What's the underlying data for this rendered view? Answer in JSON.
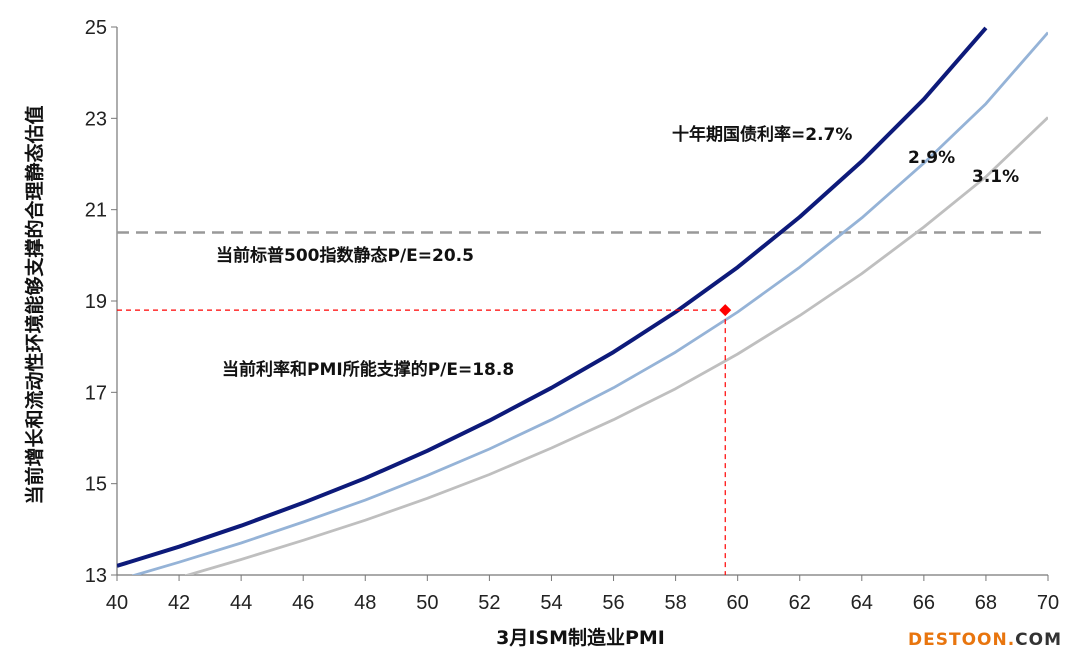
{
  "chart_data": {
    "type": "line",
    "xlabel": "3月ISM制造业PMI",
    "ylabel": "当前增长和流动性环境能够支撑的合理静态估值",
    "xlim": [
      40,
      70
    ],
    "ylim": [
      13,
      25
    ],
    "xticks": [
      40,
      42,
      44,
      46,
      48,
      50,
      52,
      54,
      56,
      58,
      60,
      62,
      64,
      66,
      68,
      70
    ],
    "yticks": [
      13,
      15,
      17,
      19,
      21,
      23,
      25
    ],
    "grid": false,
    "legend": "none",
    "series": [
      {
        "name": "十年期国债利率=2.7%",
        "color": "#0d1a7a",
        "points": [
          [
            40,
            13.2
          ],
          [
            42,
            13.62
          ],
          [
            44,
            14.08
          ],
          [
            46,
            14.58
          ],
          [
            48,
            15.12
          ],
          [
            50,
            15.72
          ],
          [
            52,
            16.38
          ],
          [
            54,
            17.1
          ],
          [
            56,
            17.88
          ],
          [
            58,
            18.76
          ],
          [
            60,
            19.74
          ],
          [
            62,
            20.84
          ],
          [
            64,
            22.06
          ],
          [
            66,
            23.42
          ],
          [
            68,
            24.98
          ]
        ]
      },
      {
        "name": "2.9%",
        "color": "#95b3d7",
        "points": [
          [
            40.5,
            12.98
          ],
          [
            42,
            13.28
          ],
          [
            44,
            13.7
          ],
          [
            46,
            14.16
          ],
          [
            48,
            14.64
          ],
          [
            50,
            15.18
          ],
          [
            52,
            15.76
          ],
          [
            54,
            16.4
          ],
          [
            56,
            17.1
          ],
          [
            58,
            17.88
          ],
          [
            60,
            18.76
          ],
          [
            62,
            19.74
          ],
          [
            64,
            20.82
          ],
          [
            66,
            22.02
          ],
          [
            68,
            23.32
          ],
          [
            70,
            24.88
          ]
        ]
      },
      {
        "name": "3.1%",
        "color": "#bfbfbf",
        "points": [
          [
            42.2,
            12.98
          ],
          [
            44,
            13.34
          ],
          [
            46,
            13.76
          ],
          [
            48,
            14.2
          ],
          [
            50,
            14.68
          ],
          [
            52,
            15.2
          ],
          [
            54,
            15.78
          ],
          [
            56,
            16.4
          ],
          [
            58,
            17.08
          ],
          [
            60,
            17.84
          ],
          [
            62,
            18.68
          ],
          [
            64,
            19.6
          ],
          [
            66,
            20.62
          ],
          [
            68,
            21.72
          ],
          [
            70,
            23.02
          ]
        ]
      }
    ],
    "reference_line": {
      "y": 20.5,
      "label": "当前标普500指数静态P/E=20.5",
      "color": "#999999"
    },
    "current_point": {
      "x": 59.6,
      "y": 18.8,
      "label": "当前利率和PMI所能支撑的P/E=18.8",
      "color": "#ff0000"
    },
    "x_tick_labels": [
      "40",
      "42",
      "44",
      "46",
      "48",
      "50",
      "52",
      "54",
      "56",
      "58",
      "60",
      "62",
      "64",
      "66",
      "68",
      "70"
    ],
    "y_tick_labels": [
      "13",
      "15",
      "17",
      "19",
      "21",
      "23",
      "25"
    ]
  },
  "watermark": {
    "main": "DESTOON",
    "dot": ".",
    "tld": "COM"
  }
}
